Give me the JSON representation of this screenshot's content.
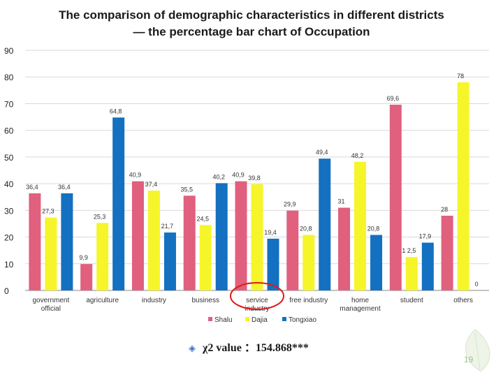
{
  "title_line1": "The comparison of demographic characteristics in different districts",
  "title_line2": "— the percentage bar chart of Occupation",
  "chi_square": "χ2 value ：154.868***",
  "page_number": "19",
  "chart_data": {
    "type": "bar",
    "categories": [
      "government official",
      "agriculture",
      "industry",
      "business",
      "service industry",
      "free industry",
      "home management",
      "student",
      "others"
    ],
    "series": [
      {
        "name": "Shalu",
        "color": "#e0607e",
        "values": [
          36.4,
          9.9,
          40.9,
          35.5,
          40.9,
          29.9,
          31,
          69.6,
          28
        ],
        "labels": [
          "36,4",
          "9,9",
          "40,9",
          "35,5",
          "40,9",
          "29,9",
          "31",
          "69,6",
          "28"
        ]
      },
      {
        "name": "Dajia",
        "color": "#f5f52a",
        "values": [
          27.3,
          25.3,
          37.4,
          24.5,
          39.8,
          20.8,
          48.2,
          12.5,
          78
        ],
        "labels": [
          "27,3",
          "25,3",
          "37,4",
          "24,5",
          "39,8",
          "20,8",
          "48,2",
          "1 2,5",
          "78"
        ]
      },
      {
        "name": "Tongxiao",
        "color": "#1470c0",
        "values": [
          36.4,
          64.8,
          21.7,
          40.2,
          19.4,
          49.4,
          20.8,
          17.9,
          0
        ],
        "labels": [
          "36,4",
          "64,8",
          "21,7",
          "40,2",
          "19,4",
          "49,4",
          "20,8",
          "17,9",
          "0"
        ]
      }
    ],
    "yticks": [
      "0",
      "10",
      "20",
      "30",
      "40",
      "50",
      "60",
      "70",
      "80",
      "90"
    ],
    "ylim": [
      0,
      90
    ],
    "grid": true,
    "legend_position": "bottom",
    "highlighted_category": "service industry"
  }
}
